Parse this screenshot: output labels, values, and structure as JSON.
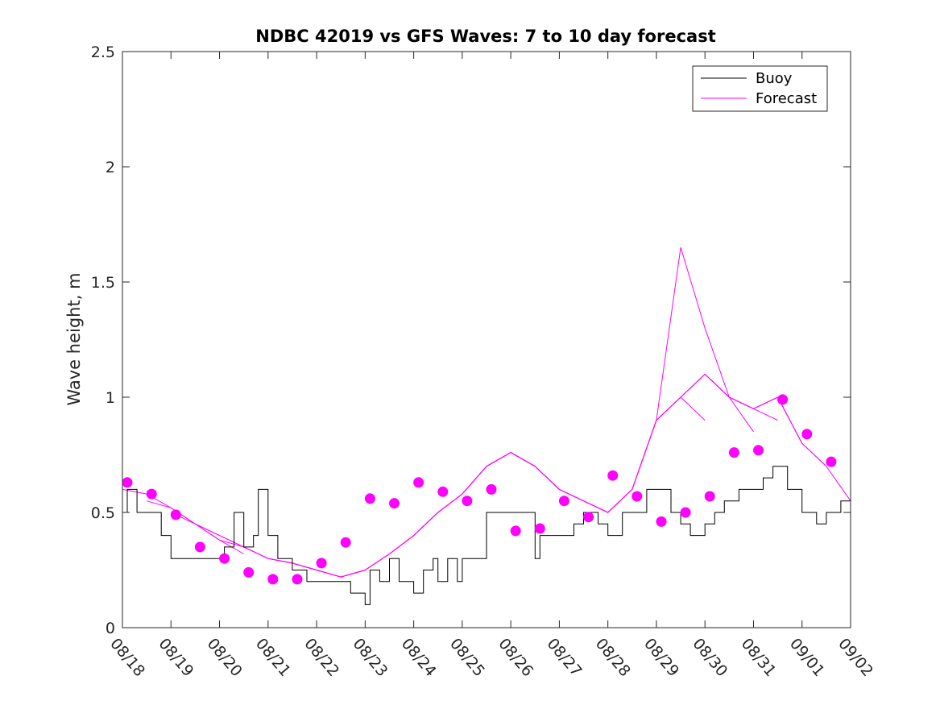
{
  "chart_data": {
    "type": "line",
    "title": "NDBC 42019 vs GFS Waves: 7 to 10 day forecast",
    "xlabel": "",
    "ylabel": "Wave height, m",
    "xlim": [
      0,
      15
    ],
    "ylim": [
      0,
      2.5
    ],
    "yticks": [
      0,
      0.5,
      1,
      1.5,
      2,
      2.5
    ],
    "ytick_labels": [
      "0",
      "0.5",
      "1",
      "1.5",
      "2",
      "2.5"
    ],
    "xtick_labels": [
      "08/18",
      "08/19",
      "08/20",
      "08/21",
      "08/22",
      "08/23",
      "08/24",
      "08/25",
      "08/26",
      "08/27",
      "08/28",
      "08/29",
      "08/30",
      "08/31",
      "09/01",
      "09/02"
    ],
    "legend": {
      "position": "top-right",
      "entries": [
        {
          "name": "Buoy",
          "color": "#000000"
        },
        {
          "name": "Forecast",
          "color": "#ff00ff"
        }
      ]
    },
    "series": [
      {
        "name": "Buoy",
        "color": "#000000",
        "x": [
          0,
          0.1,
          0.3,
          0.5,
          0.8,
          1,
          1.5,
          1.8,
          2,
          2.1,
          2.3,
          2.5,
          2.7,
          2.8,
          3,
          3.2,
          3.5,
          3.8,
          4,
          4.2,
          4.5,
          4.7,
          5,
          5.1,
          5.3,
          5.5,
          5.7,
          5.9,
          6,
          6.2,
          6.4,
          6.5,
          6.7,
          6.9,
          7,
          7.5,
          8,
          8.5,
          8.6,
          9,
          9.3,
          9.5,
          9.8,
          10,
          10.3,
          10.5,
          10.8,
          11,
          11.3,
          11.5,
          11.7,
          12,
          12.2,
          12.4,
          12.7,
          13,
          13.2,
          13.4,
          13.7,
          14,
          14.3,
          14.5,
          14.8,
          15
        ],
        "values": [
          0.5,
          0.6,
          0.5,
          0.5,
          0.4,
          0.3,
          0.3,
          0.3,
          0.3,
          0.35,
          0.5,
          0.35,
          0.4,
          0.6,
          0.4,
          0.3,
          0.25,
          0.2,
          0.2,
          0.2,
          0.2,
          0.15,
          0.1,
          0.25,
          0.2,
          0.3,
          0.2,
          0.2,
          0.15,
          0.25,
          0.3,
          0.2,
          0.3,
          0.2,
          0.3,
          0.5,
          0.5,
          0.3,
          0.4,
          0.4,
          0.45,
          0.5,
          0.45,
          0.4,
          0.5,
          0.5,
          0.6,
          0.6,
          0.5,
          0.45,
          0.4,
          0.45,
          0.5,
          0.55,
          0.6,
          0.6,
          0.65,
          0.7,
          0.6,
          0.5,
          0.45,
          0.5,
          0.55,
          0.6
        ],
        "note": "step-like buoy record"
      }
    ],
    "forecast_runs": [
      {
        "x": [
          0,
          0.5,
          1,
          1.5,
          2
        ],
        "values": [
          0.6,
          0.58,
          0.52,
          0.45,
          0.4
        ]
      },
      {
        "x": [
          0.5,
          1,
          1.5,
          2,
          2.5
        ],
        "values": [
          0.55,
          0.52,
          0.45,
          0.38,
          0.32
        ]
      },
      {
        "x": [
          1,
          1.5,
          2,
          2.5,
          3,
          3.5
        ],
        "values": [
          0.5,
          0.45,
          0.4,
          0.35,
          0.3,
          0.28
        ]
      },
      {
        "x": [
          1.5,
          2,
          2.5,
          3,
          3.5,
          4
        ],
        "values": [
          0.45,
          0.38,
          0.35,
          0.3,
          0.28,
          0.25
        ]
      },
      {
        "x": [
          2,
          2.5,
          3,
          3.5,
          4,
          4.5
        ],
        "values": [
          0.4,
          0.35,
          0.3,
          0.28,
          0.25,
          0.22
        ]
      },
      {
        "x": [
          2.5,
          3,
          3.5,
          4,
          4.5,
          5
        ],
        "values": [
          0.35,
          0.3,
          0.28,
          0.25,
          0.22,
          0.25
        ]
      },
      {
        "x": [
          3,
          3.5,
          4,
          4.5,
          5,
          5.5
        ],
        "values": [
          0.3,
          0.28,
          0.25,
          0.22,
          0.25,
          0.32
        ]
      },
      {
        "x": [
          3.5,
          4,
          4.5,
          5,
          5.5,
          6
        ],
        "values": [
          0.28,
          0.25,
          0.22,
          0.25,
          0.32,
          0.4
        ]
      },
      {
        "x": [
          4,
          4.5,
          5,
          5.5,
          6,
          6.5
        ],
        "values": [
          0.25,
          0.22,
          0.25,
          0.32,
          0.4,
          0.5
        ]
      },
      {
        "x": [
          4.5,
          5,
          5.5,
          6,
          6.5,
          7
        ],
        "values": [
          0.22,
          0.25,
          0.32,
          0.4,
          0.5,
          0.58
        ]
      },
      {
        "x": [
          5,
          5.5,
          6,
          6.5,
          7,
          7.5
        ],
        "values": [
          0.25,
          0.32,
          0.4,
          0.5,
          0.58,
          0.7
        ]
      },
      {
        "x": [
          5.5,
          6,
          6.5,
          7,
          7.5,
          8
        ],
        "values": [
          0.32,
          0.4,
          0.5,
          0.58,
          0.7,
          0.76
        ]
      },
      {
        "x": [
          6,
          6.5,
          7,
          7.5,
          8,
          8.5
        ],
        "values": [
          0.4,
          0.5,
          0.58,
          0.7,
          0.76,
          0.7
        ]
      },
      {
        "x": [
          6.5,
          7,
          7.5,
          8,
          8.5,
          9
        ],
        "values": [
          0.5,
          0.58,
          0.7,
          0.76,
          0.7,
          0.6
        ]
      },
      {
        "x": [
          7,
          7.5,
          8,
          8.5,
          9,
          9.5
        ],
        "values": [
          0.58,
          0.7,
          0.76,
          0.7,
          0.6,
          0.55
        ]
      },
      {
        "x": [
          7.5,
          8,
          8.5,
          9,
          9.5,
          10
        ],
        "values": [
          0.7,
          0.76,
          0.7,
          0.6,
          0.55,
          0.5
        ]
      },
      {
        "x": [
          8,
          8.5,
          9,
          9.5,
          10,
          10.5
        ],
        "values": [
          0.76,
          0.7,
          0.6,
          0.55,
          0.5,
          0.6
        ]
      },
      {
        "x": [
          8.5,
          9,
          9.5,
          10,
          10.5,
          11
        ],
        "values": [
          0.7,
          0.6,
          0.55,
          0.5,
          0.6,
          0.9
        ]
      },
      {
        "x": [
          9,
          9.5,
          10,
          10.5,
          11,
          11.5
        ],
        "values": [
          0.6,
          0.55,
          0.5,
          0.6,
          0.9,
          1.0
        ]
      },
      {
        "x": [
          9.5,
          10,
          10.5,
          11,
          11.5,
          12
        ],
        "values": [
          0.55,
          0.5,
          0.6,
          0.9,
          1.0,
          0.9
        ]
      },
      {
        "x": [
          10,
          10.5,
          11,
          11.5,
          12,
          12.5
        ],
        "values": [
          0.5,
          0.6,
          0.9,
          1.65,
          1.3,
          1.0
        ]
      },
      {
        "x": [
          10.5,
          11,
          11.5,
          12,
          12.5,
          13
        ],
        "values": [
          0.6,
          0.9,
          1.0,
          1.1,
          1.0,
          0.85
        ]
      },
      {
        "x": [
          11,
          11.5,
          12,
          12.5,
          13,
          13.5
        ],
        "values": [
          0.9,
          1.0,
          1.1,
          1.0,
          0.95,
          0.9
        ]
      },
      {
        "x": [
          11.5,
          12,
          12.5,
          13,
          13.5,
          14
        ],
        "values": [
          1.0,
          1.1,
          1.0,
          0.95,
          1.0,
          0.8
        ]
      },
      {
        "x": [
          12,
          12.5,
          13,
          13.5,
          14,
          14.5
        ],
        "values": [
          1.1,
          1.0,
          0.95,
          1.0,
          0.8,
          0.7
        ]
      },
      {
        "x": [
          12.5,
          13,
          13.5,
          14,
          14.5,
          15
        ],
        "values": [
          1.0,
          0.95,
          1.0,
          0.8,
          0.7,
          0.55
        ]
      }
    ],
    "forecast_dots": {
      "color": "#ff00ff",
      "x": [
        0.1,
        0.6,
        1.1,
        1.6,
        2.1,
        2.6,
        3.1,
        3.6,
        4.1,
        4.6,
        5.1,
        5.6,
        6.1,
        6.6,
        7.1,
        7.6,
        8.1,
        8.6,
        9.1,
        9.6,
        10.1,
        10.6,
        11.1,
        11.6,
        12.1,
        12.6,
        13.1,
        13.6,
        14.1,
        14.6
      ],
      "values": [
        0.63,
        0.58,
        0.49,
        0.35,
        0.3,
        0.24,
        0.21,
        0.21,
        0.28,
        0.37,
        0.56,
        0.54,
        0.63,
        0.59,
        0.55,
        0.6,
        0.42,
        0.43,
        0.55,
        0.48,
        0.66,
        0.57,
        0.46,
        0.5,
        0.57,
        0.76,
        0.77,
        0.99,
        0.84,
        0.72
      ]
    }
  }
}
